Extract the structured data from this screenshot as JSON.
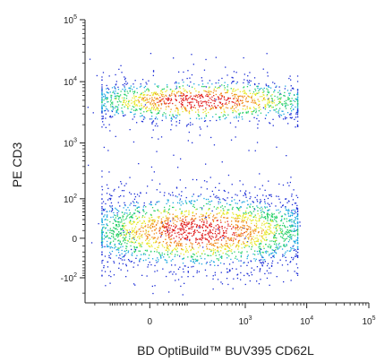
{
  "chart_data": {
    "type": "scatter",
    "plot_style": "pseudocolor density dot plot (flow cytometry, biexponential axes)",
    "xlabel": "BD OptiBuild™ BUV395 CD62L",
    "ylabel": "PE CD3",
    "x_scale": "biexponential",
    "y_scale": "biexponential",
    "x_tick_labels": [
      {
        "value": 0,
        "label": "0"
      },
      {
        "value": 1000,
        "label": "10^3"
      },
      {
        "value": 10000,
        "label": "10^4"
      },
      {
        "value": 100000,
        "label": "10^5"
      }
    ],
    "y_tick_labels": [
      {
        "value": -100,
        "label": "-10^2"
      },
      {
        "value": 0,
        "label": "0"
      },
      {
        "value": 100,
        "label": "10^2"
      },
      {
        "value": 1000,
        "label": "10^3"
      },
      {
        "value": 10000,
        "label": "10^4"
      },
      {
        "value": 100000,
        "label": "10^5"
      }
    ],
    "xlim": [
      -300,
      100000
    ],
    "ylim": [
      -300,
      100000
    ],
    "populations": [
      {
        "x_range": [
          -150,
          7000
        ],
        "y_center": 5000,
        "y_range": [
          1500,
          15000
        ],
        "relative_density": 0.35
      },
      {
        "x_range": [
          -150,
          7000
        ],
        "y_center": 10,
        "y_range": [
          -120,
          300
        ],
        "relative_density": 0.65
      }
    ],
    "density_colors": [
      "#1a2bd6",
      "#1aa7e0",
      "#2ad16a",
      "#e8e82a",
      "#f08a1a",
      "#e01a1a"
    ],
    "grid": false,
    "legend": "none"
  }
}
